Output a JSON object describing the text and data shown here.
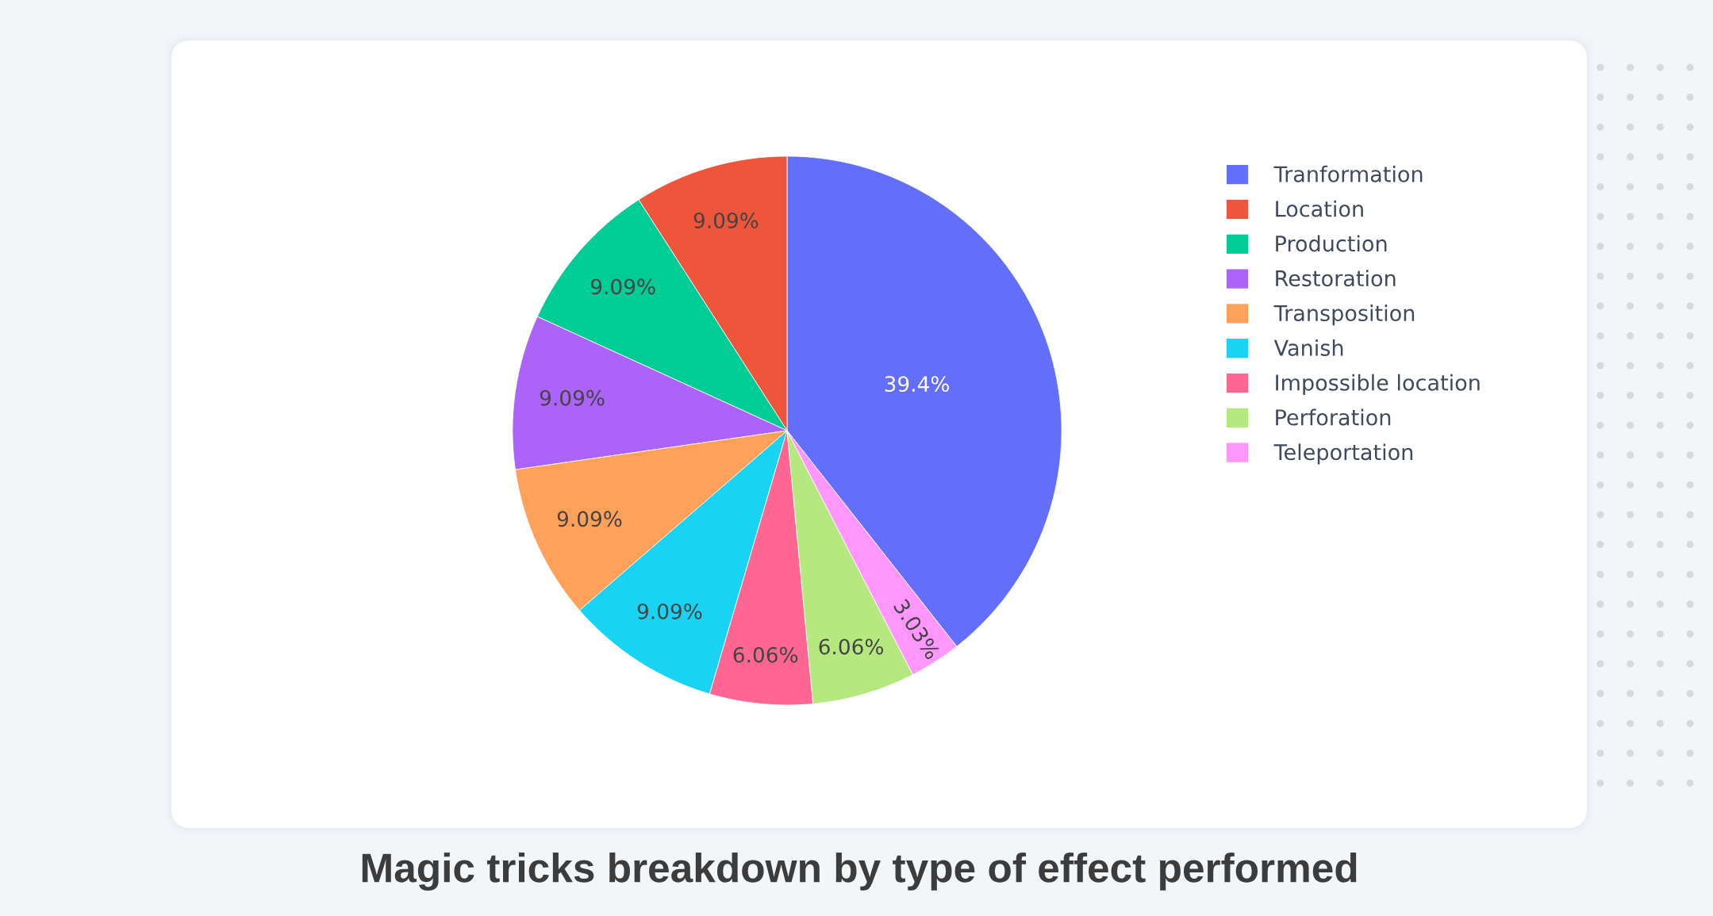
{
  "chart_data": {
    "type": "pie",
    "title": "Magic tricks breakdown by type of effect performed",
    "categories": [
      "Tranformation",
      "Location",
      "Production",
      "Restoration",
      "Transposition",
      "Vanish",
      "Impossible location",
      "Perforation",
      "Teleportation"
    ],
    "values": [
      39.4,
      9.09,
      9.09,
      9.09,
      9.09,
      9.09,
      6.06,
      6.06,
      3.03
    ],
    "colors": [
      "#636efa",
      "#ef553b",
      "#00cc96",
      "#ab63fa",
      "#ffa15a",
      "#19d3f3",
      "#ff6692",
      "#b6e880",
      "#ff97ff"
    ],
    "value_labels": [
      "39.4%",
      "9.09%",
      "9.09%",
      "9.09%",
      "9.09%",
      "9.09%",
      "6.06%",
      "6.06%",
      "3.03%"
    ],
    "legend": "top right"
  }
}
